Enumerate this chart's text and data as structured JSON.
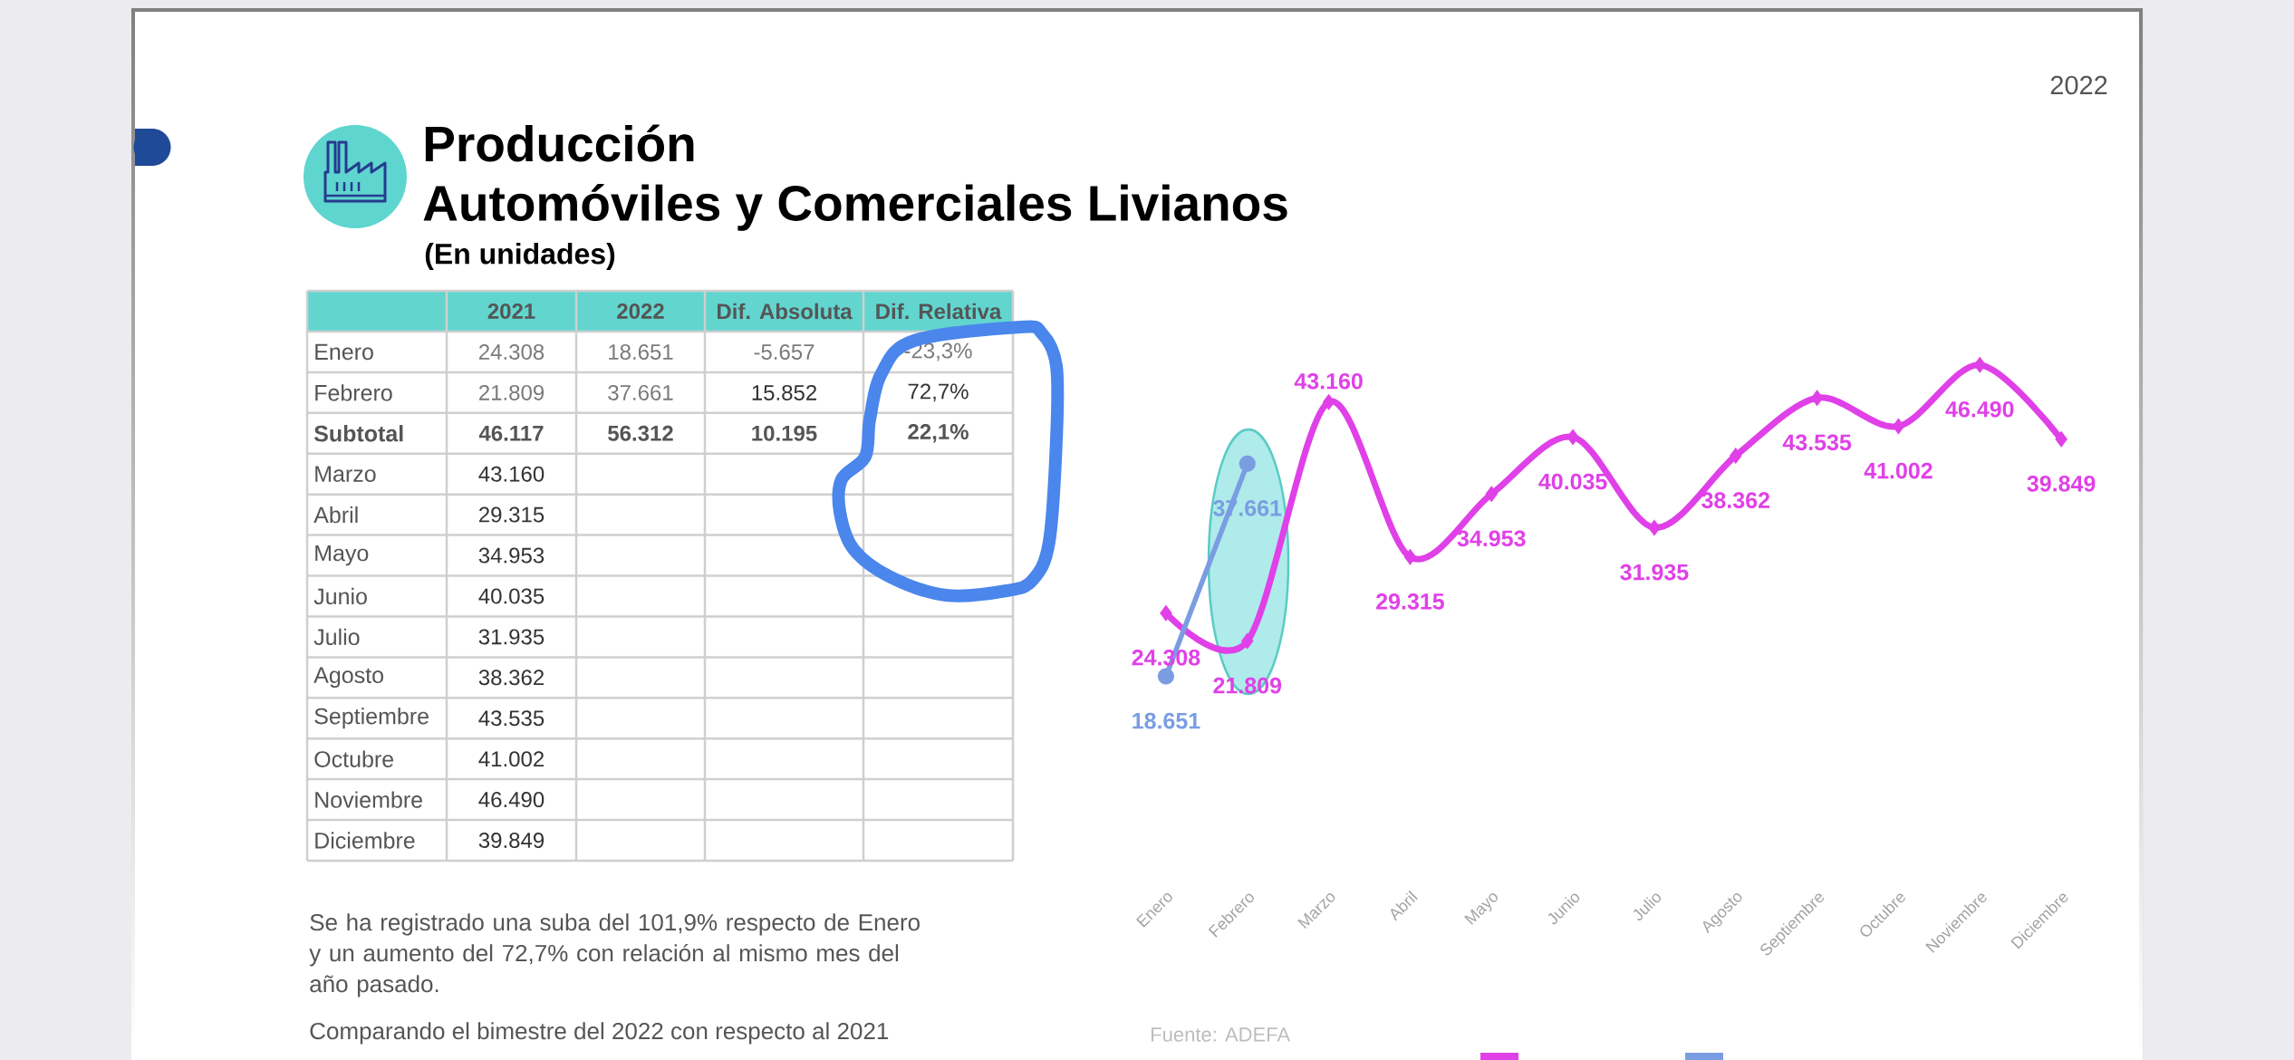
{
  "chart_data": {
    "type": "line",
    "title": "Producción",
    "subtitle": "Automóviles y Comerciales Livianos",
    "categories": [
      "Enero",
      "Febrero",
      "Marzo",
      "Abril",
      "Mayo",
      "Junio",
      "Julio",
      "Agosto",
      "Septiembre",
      "Octubre",
      "Noviembre",
      "Diciembre"
    ],
    "series": [
      {
        "color": "#e040e8",
        "marker": "diamond",
        "values": [
          24308,
          21809,
          43160,
          29315,
          34953,
          40035,
          31935,
          38362,
          43535,
          41002,
          46490,
          39849
        ],
        "value_labels": [
          "24.308",
          "21.809",
          "43.160",
          "29.315",
          "34.953",
          "40.035",
          "31.935",
          "38.362",
          "43.535",
          "41.002",
          "46.490",
          "39.849"
        ]
      },
      {
        "color": "#7a9de2",
        "marker": "circle",
        "values": [
          18651,
          37661,
          null,
          null,
          null,
          null,
          null,
          null,
          null,
          null,
          null,
          null
        ],
        "value_labels": [
          "18.651",
          "37.661",
          null,
          null,
          null,
          null,
          null,
          null,
          null,
          null,
          null,
          null
        ]
      }
    ],
    "annotations": [
      "(En unidades)",
      "2022",
      "Fuente: ADEFA",
      "Se ha registrado una suba del 101,9% respecto de Enero y un aumento del 72,7% con relación al mismo mes del año pasado.",
      "Comparando el bimestre del 2022 con respecto al 2021",
      "2021",
      "2022",
      "Dif. Absoluta",
      "Dif. Relativa",
      "Subtotal",
      "46.117",
      "56.312",
      "10.195",
      "22,1%",
      "-5.657",
      "15.852",
      "-23,3%",
      "72,7%"
    ]
  }
}
